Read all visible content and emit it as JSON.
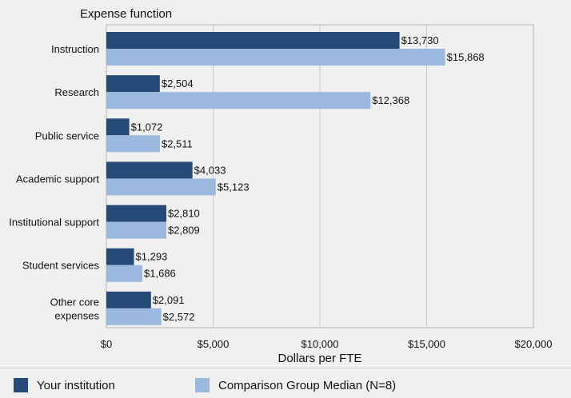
{
  "chart_data": {
    "type": "bar",
    "orientation": "horizontal",
    "category_axis_title": "Expense function",
    "xlabel": "Dollars per FTE",
    "xlim": [
      0,
      20000
    ],
    "xticks": [
      0,
      5000,
      10000,
      15000,
      20000
    ],
    "xtick_labels": [
      "$0",
      "$5,000",
      "$10,000",
      "$15,000",
      "$20,000"
    ],
    "grid": true,
    "legend_position": "bottom",
    "categories": [
      "Instruction",
      "Research",
      "Public service",
      "Academic support",
      "Institutional support",
      "Student services",
      "Other core\nexpenses"
    ],
    "series": [
      {
        "name": "Your institution",
        "color": "#254a77",
        "values": [
          13730,
          2504,
          1072,
          4033,
          2810,
          1293,
          2091
        ],
        "data_labels": [
          "$13,730",
          "$2,504",
          "$1,072",
          "$4,033",
          "$2,810",
          "$1,293",
          "$2,091"
        ]
      },
      {
        "name": "Comparison Group Median (N=8)",
        "color": "#9bb9df",
        "values": [
          15868,
          12368,
          2511,
          5123,
          2809,
          1686,
          2572
        ],
        "data_labels": [
          "$15,868",
          "$12,368",
          "$2,511",
          "$5,123",
          "$2,809",
          "$1,686",
          "$2,572"
        ]
      }
    ]
  }
}
